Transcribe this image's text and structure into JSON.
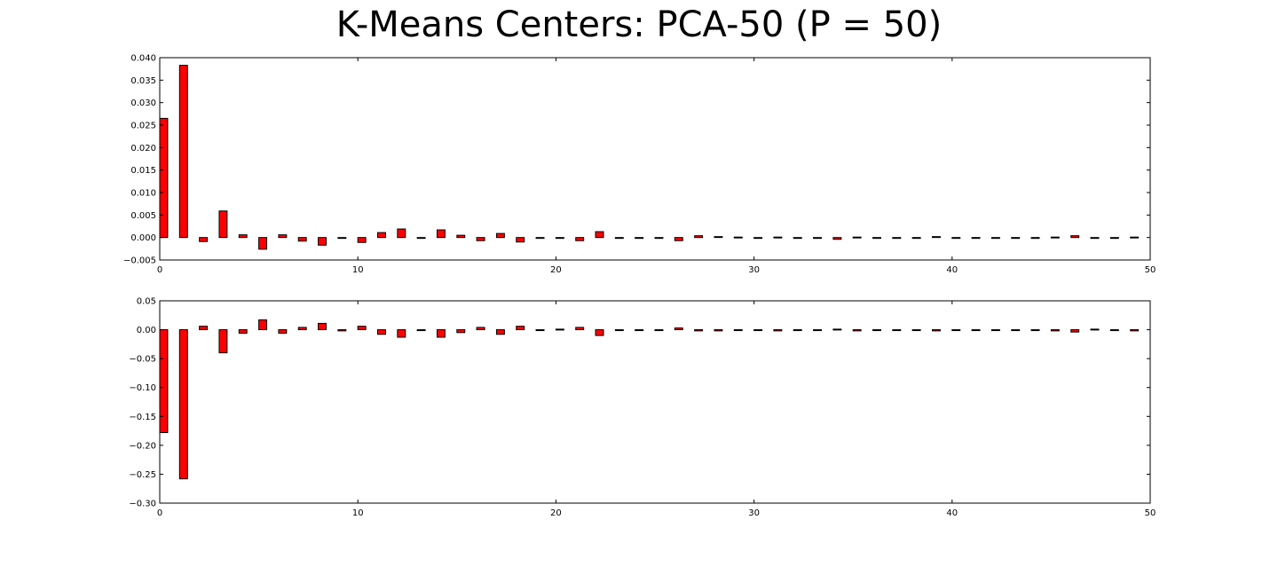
{
  "title": "K-Means Centers: PCA-50 (P = 50)",
  "colors": {
    "bar_fill": "#ff0000",
    "bar_edge": "#000000",
    "axis": "#000000"
  },
  "chart_data": [
    {
      "type": "bar",
      "x": [
        0,
        1,
        2,
        3,
        4,
        5,
        6,
        7,
        8,
        9,
        10,
        11,
        12,
        13,
        14,
        15,
        16,
        17,
        18,
        19,
        20,
        21,
        22,
        23,
        24,
        25,
        26,
        27,
        28,
        29,
        30,
        31,
        32,
        33,
        34,
        35,
        36,
        37,
        38,
        39,
        40,
        41,
        42,
        43,
        44,
        45,
        46,
        47,
        48,
        49
      ],
      "values": [
        0.0265,
        0.0383,
        -0.0009,
        0.0059,
        0.0006,
        -0.0026,
        0.0006,
        -0.0008,
        -0.0017,
        -0.0002,
        -0.0011,
        0.0011,
        0.0019,
        -0.0001,
        0.0017,
        0.0005,
        -0.0007,
        0.0009,
        -0.001,
        0.0,
        -0.0002,
        -0.0007,
        0.0013,
        0.0,
        0.0,
        -0.0002,
        -0.0007,
        0.0004,
        0.0002,
        0.0001,
        0.0,
        0.0001,
        0.0,
        0.0,
        -0.0004,
        0.0001,
        0.0,
        0.0,
        0.0,
        0.0002,
        0.0,
        0.0,
        0.0,
        0.0,
        -0.0002,
        0.0001,
        0.0004,
        -0.0002,
        -0.0002,
        0.0001
      ],
      "bar_width": 0.4,
      "xlim": [
        0,
        50
      ],
      "ylim": [
        -0.005,
        0.04
      ],
      "xticks": [
        0,
        10,
        20,
        30,
        40,
        50
      ],
      "xtick_labels": [
        "0",
        "10",
        "20",
        "30",
        "40",
        "50"
      ],
      "yticks": [
        -0.005,
        0.0,
        0.005,
        0.01,
        0.015,
        0.02,
        0.025,
        0.03,
        0.035,
        0.04
      ],
      "ytick_labels": [
        "−0.005",
        "0.000",
        "0.005",
        "0.010",
        "0.015",
        "0.020",
        "0.025",
        "0.030",
        "0.035",
        "0.040"
      ],
      "grid": false
    },
    {
      "type": "bar",
      "x": [
        0,
        1,
        2,
        3,
        4,
        5,
        6,
        7,
        8,
        9,
        10,
        11,
        12,
        13,
        14,
        15,
        16,
        17,
        18,
        19,
        20,
        21,
        22,
        23,
        24,
        25,
        26,
        27,
        28,
        29,
        30,
        31,
        32,
        33,
        34,
        35,
        36,
        37,
        38,
        39,
        40,
        41,
        42,
        43,
        44,
        45,
        46,
        47,
        48,
        49
      ],
      "values": [
        -0.178,
        -0.258,
        0.006,
        -0.04,
        -0.006,
        0.017,
        -0.006,
        0.004,
        0.011,
        -0.002,
        0.006,
        -0.008,
        -0.013,
        -0.001,
        -0.013,
        -0.005,
        0.004,
        -0.008,
        0.006,
        0.0,
        0.001,
        0.004,
        -0.01,
        0.0,
        0.0,
        0.0,
        0.003,
        -0.002,
        -0.002,
        -0.001,
        0.0,
        -0.002,
        0.0,
        0.0,
        0.001,
        -0.002,
        0.0,
        0.0,
        0.0,
        -0.002,
        0.0,
        0.0,
        0.0,
        0.0,
        0.0,
        -0.002,
        -0.004,
        0.001,
        0.0,
        -0.002
      ],
      "bar_width": 0.4,
      "xlim": [
        0,
        50
      ],
      "ylim": [
        -0.3,
        0.05
      ],
      "xticks": [
        0,
        10,
        20,
        30,
        40,
        50
      ],
      "xtick_labels": [
        "0",
        "10",
        "20",
        "30",
        "40",
        "50"
      ],
      "yticks": [
        -0.3,
        -0.25,
        -0.2,
        -0.15,
        -0.1,
        -0.05,
        0.0,
        0.05
      ],
      "ytick_labels": [
        "−0.30",
        "−0.25",
        "−0.20",
        "−0.15",
        "−0.10",
        "−0.05",
        "0.00",
        "0.05"
      ],
      "grid": false
    }
  ]
}
